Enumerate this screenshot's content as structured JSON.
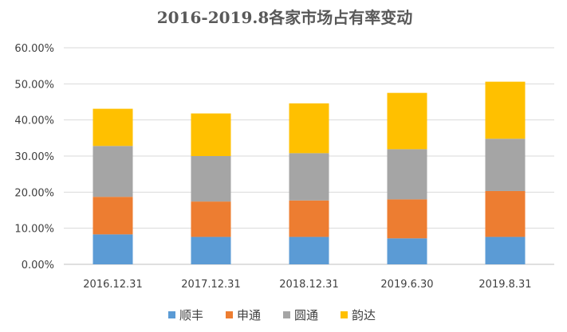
{
  "chart_data": {
    "type": "bar",
    "stacked": true,
    "title": "2016-2019.8各家市场占有率变动",
    "xlabel": "",
    "ylabel": "",
    "categories": [
      "2016.12.31",
      "2017.12.31",
      "2018.12.31",
      "2019.6.30",
      "2019.8.31"
    ],
    "ylim": [
      0,
      60
    ],
    "yticks": [
      0,
      10,
      20,
      30,
      40,
      50,
      60
    ],
    "ytick_labels": [
      "0.00%",
      "10.00%",
      "20.00%",
      "30.00%",
      "40.00%",
      "50.00%",
      "60.00%"
    ],
    "grid": true,
    "legend_position": "bottom",
    "series": [
      {
        "name": "顺丰",
        "color": "#5B9BD5",
        "values": [
          8.3,
          7.6,
          7.6,
          7.2,
          7.6
        ]
      },
      {
        "name": "申通",
        "color": "#ED7D31",
        "values": [
          10.4,
          9.8,
          10.1,
          10.8,
          12.7
        ]
      },
      {
        "name": "圆通",
        "color": "#A5A5A5",
        "values": [
          14.1,
          12.6,
          13.1,
          13.9,
          14.5
        ]
      },
      {
        "name": "韵达",
        "color": "#FFC000",
        "values": [
          10.3,
          11.8,
          13.8,
          15.6,
          15.8
        ]
      }
    ]
  }
}
